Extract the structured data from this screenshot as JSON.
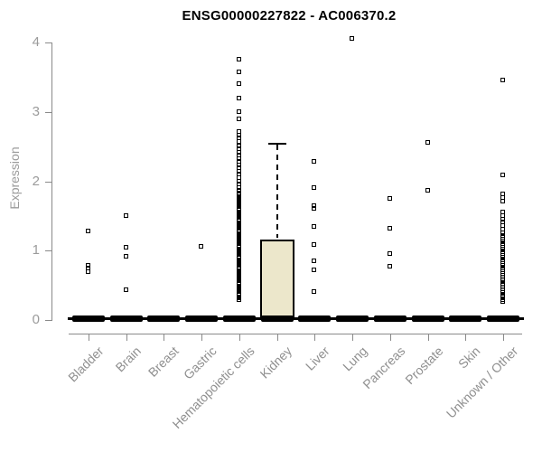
{
  "chart_data": {
    "type": "boxplot",
    "title": "ENSG00000227822 - AC006370.2",
    "ylabel": "Expression",
    "ylim": [
      0,
      4.2
    ],
    "yticks": [
      0,
      1,
      2,
      3,
      4
    ],
    "grid": false,
    "legend": "none",
    "categories": [
      "Bladder",
      "Brain",
      "Breast",
      "Gastric",
      "Hematopoietic cells",
      "Kidney",
      "Liver",
      "Lung",
      "Pancreas",
      "Prostate",
      "Skin",
      "Unknown / Other"
    ],
    "colors": {
      "box_fill": "#ece7cb",
      "axis": "#8a8a8a",
      "tick_text": "#9b9b9b",
      "marker": "#000000",
      "title_text": "#000000"
    },
    "series": [
      {
        "tissue": "Bladder",
        "median": 0,
        "points": [
          1.29,
          0.79,
          0.75,
          0.7
        ]
      },
      {
        "tissue": "Brain",
        "median": 0,
        "points": [
          1.51,
          1.06,
          0.93,
          0.44
        ]
      },
      {
        "tissue": "Breast",
        "median": 0,
        "points": []
      },
      {
        "tissue": "Gastric",
        "median": 0,
        "points": [
          1.07
        ]
      },
      {
        "tissue": "Hematopoietic cells",
        "median": 0,
        "points": [
          3.77,
          3.58,
          3.41,
          3.21,
          3.01,
          2.91
        ],
        "bands": [
          {
            "from": 2.72,
            "to": 2.58,
            "count": 4
          },
          {
            "from": 2.52,
            "to": 1.92,
            "count": 14
          },
          {
            "from": 1.88,
            "to": 0.3,
            "count": 72
          }
        ]
      },
      {
        "tissue": "Kidney",
        "median": 0,
        "points": [],
        "box": {
          "q1": 0,
          "median": 0,
          "q3": 1.16,
          "whisker_low": 0,
          "whisker_high": 2.55
        }
      },
      {
        "tissue": "Liver",
        "median": 0,
        "points": [
          2.29,
          1.92,
          1.66,
          1.62,
          1.36,
          1.09,
          0.86,
          0.73,
          0.42
        ]
      },
      {
        "tissue": "Lung",
        "median": 0,
        "points": [
          4.07
        ]
      },
      {
        "tissue": "Pancreas",
        "median": 0,
        "points": [
          1.76,
          1.33,
          0.96,
          0.78
        ]
      },
      {
        "tissue": "Prostate",
        "median": 0,
        "points": [
          2.57,
          1.88
        ]
      },
      {
        "tissue": "Skin",
        "median": 0,
        "points": []
      },
      {
        "tissue": "Unknown / Other",
        "median": 0,
        "points": [
          3.47,
          2.1
        ],
        "bands": [
          {
            "from": 1.82,
            "to": 1.72,
            "count": 3
          },
          {
            "from": 1.56,
            "to": 1.32,
            "count": 6
          },
          {
            "from": 1.26,
            "to": 0.82,
            "count": 16
          },
          {
            "from": 0.79,
            "to": 0.4,
            "count": 15
          },
          {
            "from": 0.37,
            "to": 0.27,
            "count": 4
          }
        ]
      }
    ]
  }
}
